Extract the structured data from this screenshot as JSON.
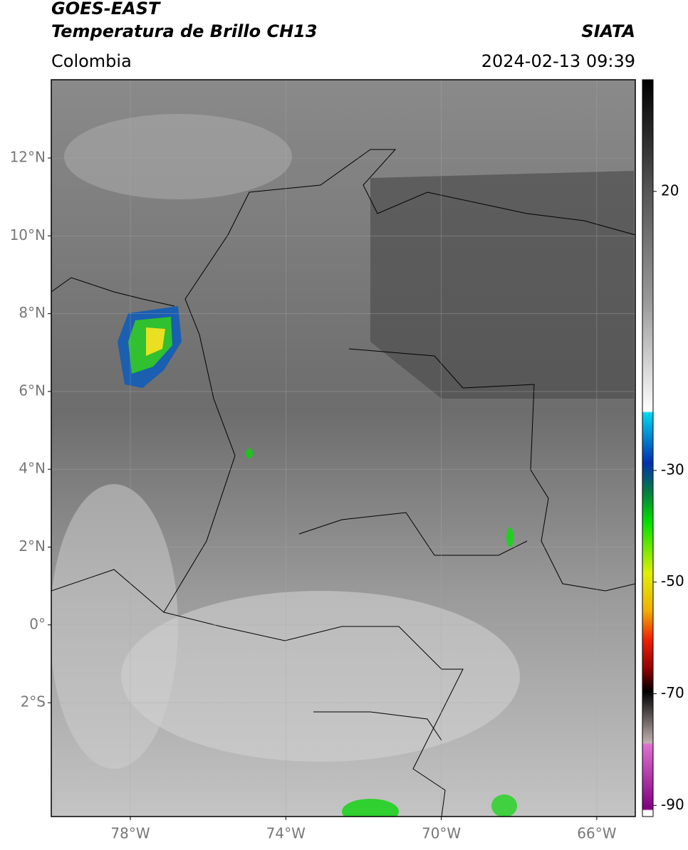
{
  "header": {
    "title": "GOES-EAST",
    "subtitle": "Temperatura de Brillo CH13",
    "source": "SIATA",
    "region": "Colombia",
    "timestamp": "2024-02-13 09:39"
  },
  "map": {
    "lat_labels": [
      "12°N",
      "10°N",
      "8°N",
      "6°N",
      "4°N",
      "2°N",
      "0°",
      "2°S"
    ],
    "lon_labels": [
      "78°W",
      "74°W",
      "70°W",
      "66°W"
    ]
  },
  "colorbar": {
    "lim": [
      -92,
      40
    ],
    "ticks": [
      20,
      -30,
      -50,
      -70,
      -90
    ]
  }
}
